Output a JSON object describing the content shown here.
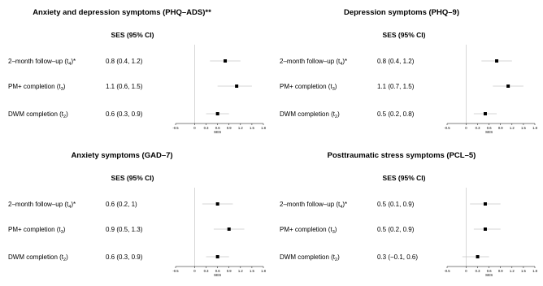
{
  "chart_data": [
    {
      "type": "forest",
      "title": "Anxiety and depression symptoms (PHQ–ADS)**",
      "column_header": "SES (95% CI)",
      "xlabel": "SES",
      "xlim": [
        -0.5,
        1.8
      ],
      "xticks": [
        "-0.5",
        "0",
        "0.3",
        "0.6",
        "0.9",
        "1.2",
        "1.5",
        "1.8"
      ],
      "rows": [
        {
          "label": "2–month follow–up (t",
          "sub": "4",
          "suffix": ")*",
          "ci_text": "0.8 (0.4, 1.2)",
          "est": 0.8,
          "lo": 0.4,
          "hi": 1.2
        },
        {
          "label": "PM+ completion (t",
          "sub": "3",
          "suffix": ")",
          "ci_text": "1.1 (0.6, 1.5)",
          "est": 1.1,
          "lo": 0.6,
          "hi": 1.5
        },
        {
          "label": "DWM completion (t",
          "sub": "2",
          "suffix": ")",
          "ci_text": "0.6 (0.3, 0.9)",
          "est": 0.6,
          "lo": 0.3,
          "hi": 0.9
        }
      ]
    },
    {
      "type": "forest",
      "title": "Depression symptoms (PHQ–9)",
      "column_header": "SES (95% CI)",
      "xlabel": "SES",
      "xlim": [
        -0.5,
        1.8
      ],
      "xticks": [
        "-0.5",
        "0",
        "0.3",
        "0.6",
        "0.9",
        "1.2",
        "1.5",
        "1.8"
      ],
      "rows": [
        {
          "label": "2–month follow–up (t",
          "sub": "4",
          "suffix": ")*",
          "ci_text": "0.8 (0.4, 1.2)",
          "est": 0.8,
          "lo": 0.4,
          "hi": 1.2
        },
        {
          "label": "PM+ completion (t",
          "sub": "3",
          "suffix": ")",
          "ci_text": "1.1 (0.7, 1.5)",
          "est": 1.1,
          "lo": 0.7,
          "hi": 1.5
        },
        {
          "label": "DWM completion (t",
          "sub": "2",
          "suffix": ")",
          "ci_text": "0.5 (0.2, 0.8)",
          "est": 0.5,
          "lo": 0.2,
          "hi": 0.8
        }
      ]
    },
    {
      "type": "forest",
      "title": "Anxiety symptoms (GAD–7)",
      "column_header": "SES (95% CI)",
      "xlabel": "SES",
      "xlim": [
        -0.5,
        1.8
      ],
      "xticks": [
        "-0.5",
        "0",
        "0.3",
        "0.6",
        "0.9",
        "1.2",
        "1.5",
        "1.8"
      ],
      "rows": [
        {
          "label": "2–month follow–up (t",
          "sub": "4",
          "suffix": ")*",
          "ci_text": "0.6 (0.2, 1)",
          "est": 0.6,
          "lo": 0.2,
          "hi": 1.0
        },
        {
          "label": "PM+ completion (t",
          "sub": "3",
          "suffix": ")",
          "ci_text": "0.9 (0.5, 1.3)",
          "est": 0.9,
          "lo": 0.5,
          "hi": 1.3
        },
        {
          "label": "DWM completion (t",
          "sub": "2",
          "suffix": ")",
          "ci_text": "0.6 (0.3, 0.9)",
          "est": 0.6,
          "lo": 0.3,
          "hi": 0.9
        }
      ]
    },
    {
      "type": "forest",
      "title": "Posttraumatic stress symptoms (PCL–5)",
      "column_header": "SES (95% CI)",
      "xlabel": "SES",
      "xlim": [
        -0.5,
        1.8
      ],
      "xticks": [
        "-0.5",
        "0",
        "0.3",
        "0.6",
        "0.9",
        "1.2",
        "1.5",
        "1.8"
      ],
      "rows": [
        {
          "label": "2–month follow–up (t",
          "sub": "4",
          "suffix": ")*",
          "ci_text": "0.5 (0.1, 0.9)",
          "est": 0.5,
          "lo": 0.1,
          "hi": 0.9
        },
        {
          "label": "PM+ completion (t",
          "sub": "3",
          "suffix": ")",
          "ci_text": "0.5 (0.2, 0.9)",
          "est": 0.5,
          "lo": 0.2,
          "hi": 0.9
        },
        {
          "label": "DWM completion (t",
          "sub": "2",
          "suffix": ")",
          "ci_text": "0.3 (−0.1, 0.6)",
          "est": 0.3,
          "lo": -0.1,
          "hi": 0.6
        }
      ]
    }
  ]
}
